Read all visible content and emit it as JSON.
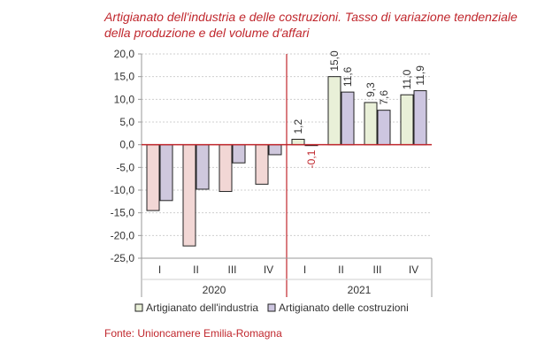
{
  "chart_data": {
    "type": "bar",
    "title": "Artigianato dell'industria e delle costruzioni. Tasso di variazione tendenziale della produzione e del volume d'affari",
    "categories": [
      "I",
      "II",
      "III",
      "IV",
      "I",
      "II",
      "III",
      "IV"
    ],
    "groups": [
      {
        "label": "2020",
        "categories": [
          "I",
          "II",
          "III",
          "IV"
        ]
      },
      {
        "label": "2021",
        "categories": [
          "I",
          "II",
          "III",
          "IV"
        ]
      }
    ],
    "series": [
      {
        "name": "Artigianato dell'industria",
        "values": [
          -14.5,
          -22.3,
          -10.3,
          -8.7,
          1.2,
          15.0,
          9.3,
          11.0
        ],
        "labels": [
          "",
          "",
          "",
          "",
          "1,2",
          "15,0",
          "9,3",
          "11,0"
        ],
        "color_2020": "#f2d7d5",
        "color_2021": "#e9f0d8"
      },
      {
        "name": "Artigianato delle costruzioni",
        "values": [
          -12.3,
          -9.8,
          -4.0,
          -2.2,
          -0.1,
          11.6,
          7.6,
          11.9
        ],
        "labels": [
          "",
          "",
          "",
          "",
          "-0,1",
          "11,6",
          "7,6",
          "11,9"
        ],
        "color_2020": "#cfc8dd",
        "color_2021": "#cdc6e0"
      }
    ],
    "ylim": [
      -25,
      20
    ],
    "yticks": [
      "20,0",
      "15,0",
      "10,0",
      "5,0",
      "0,0",
      "-5,0",
      "-10,0",
      "-15,0",
      "-20,0",
      "-25,0"
    ],
    "ytick_values": [
      20,
      15,
      10,
      5,
      0,
      -5,
      -10,
      -15,
      -20,
      -25
    ],
    "grid": true,
    "legend_position": "bottom",
    "accent_color": "#c0272d"
  },
  "source": "Fonte: Unioncamere Emilia-Romagna"
}
